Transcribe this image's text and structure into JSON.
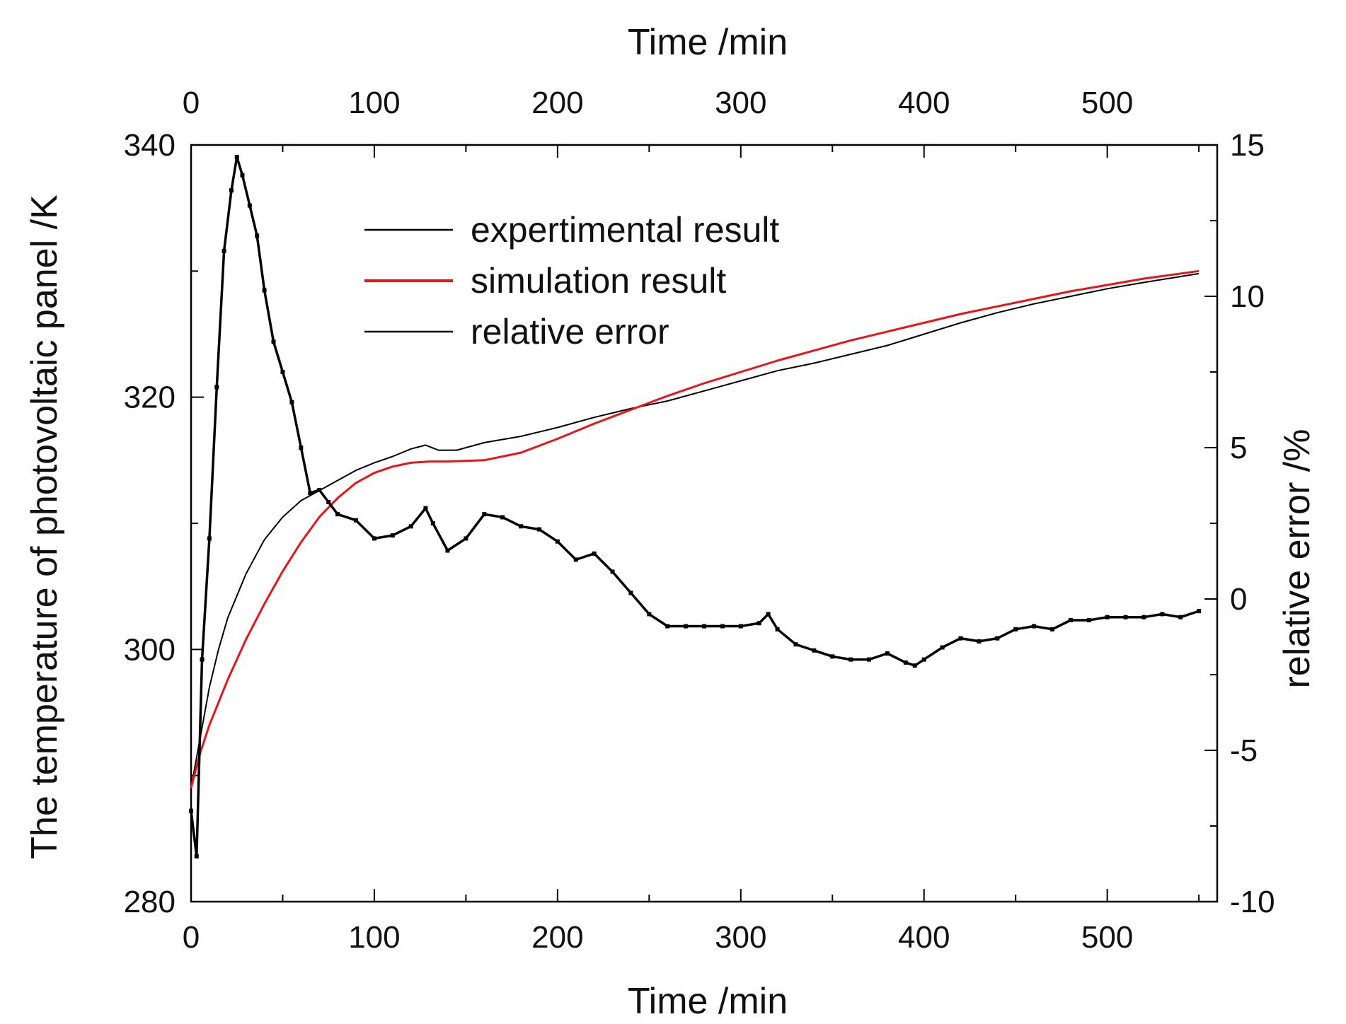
{
  "chart_data": {
    "type": "line",
    "title": "",
    "x": {
      "label_bottom": "Time /min",
      "label_top": "Time /min",
      "range": [
        0,
        560
      ],
      "major_ticks": [
        0,
        100,
        200,
        300,
        400,
        500
      ],
      "minor_step": 50
    },
    "y_left": {
      "label": "The temperature of photovoltaic panel /K",
      "range": [
        280,
        340
      ],
      "major_ticks": [
        280,
        300,
        320,
        340
      ],
      "minor_step": 10
    },
    "y_right": {
      "label": "relative error /%",
      "range": [
        -10,
        15
      ],
      "major_ticks": [
        -10,
        -5,
        0,
        5,
        10,
        15
      ],
      "minor_step": 2.5
    },
    "legend": {
      "position": "top-left-center",
      "items": [
        {
          "label": "expertimental result",
          "color": "#000000"
        },
        {
          "label": "simulation result",
          "color": "#e8141b"
        },
        {
          "label": "relative error",
          "color": "#000000"
        }
      ]
    },
    "series": [
      {
        "name": "expertimental result",
        "axis": "left",
        "color": "#000000",
        "x": [
          0,
          5,
          10,
          15,
          20,
          30,
          40,
          50,
          60,
          70,
          80,
          90,
          100,
          110,
          120,
          128,
          135,
          145,
          160,
          180,
          200,
          220,
          240,
          260,
          280,
          300,
          320,
          340,
          360,
          380,
          400,
          420,
          440,
          460,
          480,
          500,
          520,
          550
        ],
        "y": [
          289,
          293,
          297,
          300,
          302.5,
          306,
          308.7,
          310.5,
          311.8,
          312.6,
          313.4,
          314.2,
          314.8,
          315.3,
          315.9,
          316.2,
          315.8,
          315.8,
          316.4,
          316.9,
          317.6,
          318.4,
          319.1,
          319.7,
          320.5,
          321.3,
          322.1,
          322.7,
          323.4,
          324.1,
          325.0,
          325.9,
          326.7,
          327.4,
          328.0,
          328.6,
          329.1,
          329.8
        ]
      },
      {
        "name": "simulation result",
        "axis": "left",
        "color": "#e8141b",
        "x": [
          0,
          5,
          10,
          20,
          30,
          40,
          50,
          60,
          70,
          80,
          90,
          100,
          110,
          120,
          130,
          140,
          160,
          180,
          200,
          220,
          240,
          260,
          280,
          300,
          320,
          340,
          360,
          380,
          400,
          420,
          440,
          460,
          480,
          500,
          520,
          550
        ],
        "y": [
          289,
          291.8,
          294,
          297.6,
          300.8,
          303.6,
          306.2,
          308.5,
          310.5,
          312.0,
          313.2,
          314.0,
          314.5,
          314.8,
          314.9,
          314.9,
          315.0,
          315.6,
          316.7,
          317.9,
          319.0,
          320.1,
          321.1,
          322.0,
          322.9,
          323.7,
          324.5,
          325.2,
          325.9,
          326.6,
          327.2,
          327.8,
          328.4,
          328.9,
          329.4,
          330.0
        ]
      },
      {
        "name": "relative error",
        "axis": "right",
        "color": "#000000",
        "x": [
          0,
          3,
          6,
          10,
          14,
          18,
          22,
          25,
          28,
          32,
          36,
          40,
          45,
          50,
          55,
          60,
          65,
          70,
          75,
          80,
          90,
          100,
          110,
          120,
          128,
          132,
          140,
          150,
          160,
          170,
          180,
          190,
          200,
          210,
          220,
          230,
          240,
          250,
          260,
          270,
          280,
          290,
          300,
          310,
          315,
          320,
          330,
          340,
          350,
          360,
          370,
          380,
          390,
          395,
          400,
          410,
          420,
          430,
          440,
          450,
          460,
          470,
          480,
          490,
          500,
          510,
          520,
          530,
          540,
          550
        ],
        "y": [
          -7.0,
          -8.5,
          -2.0,
          2.0,
          7.0,
          11.5,
          13.5,
          14.6,
          14.0,
          13.0,
          12.0,
          10.2,
          8.5,
          7.5,
          6.5,
          5.0,
          3.5,
          3.6,
          3.2,
          2.8,
          2.6,
          2.0,
          2.1,
          2.4,
          3.0,
          2.5,
          1.6,
          2.0,
          2.8,
          2.7,
          2.4,
          2.3,
          1.9,
          1.3,
          1.5,
          0.9,
          0.2,
          -0.5,
          -0.9,
          -0.9,
          -0.9,
          -0.9,
          -0.9,
          -0.8,
          -0.5,
          -1.0,
          -1.5,
          -1.7,
          -1.9,
          -2.0,
          -2.0,
          -1.8,
          -2.1,
          -2.2,
          -2.0,
          -1.6,
          -1.3,
          -1.4,
          -1.3,
          -1.0,
          -0.9,
          -1.0,
          -0.7,
          -0.7,
          -0.6,
          -0.6,
          -0.6,
          -0.5,
          -0.6,
          -0.4
        ]
      }
    ]
  }
}
